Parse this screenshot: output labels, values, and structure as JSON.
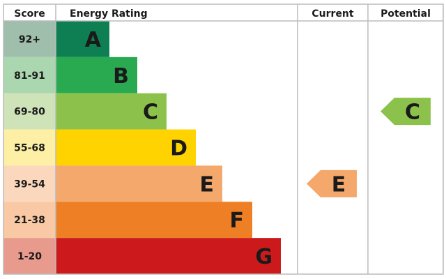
{
  "chart_data": {
    "type": "bar",
    "headers": {
      "score": "Score",
      "rating": "Energy Rating",
      "current": "Current",
      "potential": "Potential"
    },
    "bands": [
      {
        "letter": "A",
        "score": "92+",
        "color": "#0e7f52",
        "score_color": "#9fbfac"
      },
      {
        "letter": "B",
        "score": "81-91",
        "color": "#2aaa50",
        "score_color": "#aad6b0"
      },
      {
        "letter": "C",
        "score": "69-80",
        "color": "#8cc24c",
        "score_color": "#cfe3b8"
      },
      {
        "letter": "D",
        "score": "55-68",
        "color": "#fed300",
        "score_color": "#fdefa3"
      },
      {
        "letter": "E",
        "score": "39-54",
        "color": "#f4a86c",
        "score_color": "#fbd8bd"
      },
      {
        "letter": "F",
        "score": "21-38",
        "color": "#ee7f25",
        "score_color": "#f8c9a4"
      },
      {
        "letter": "G",
        "score": "1-20",
        "color": "#cc1a1c",
        "score_color": "#e89b8c"
      }
    ],
    "current": "E",
    "potential": "C"
  }
}
